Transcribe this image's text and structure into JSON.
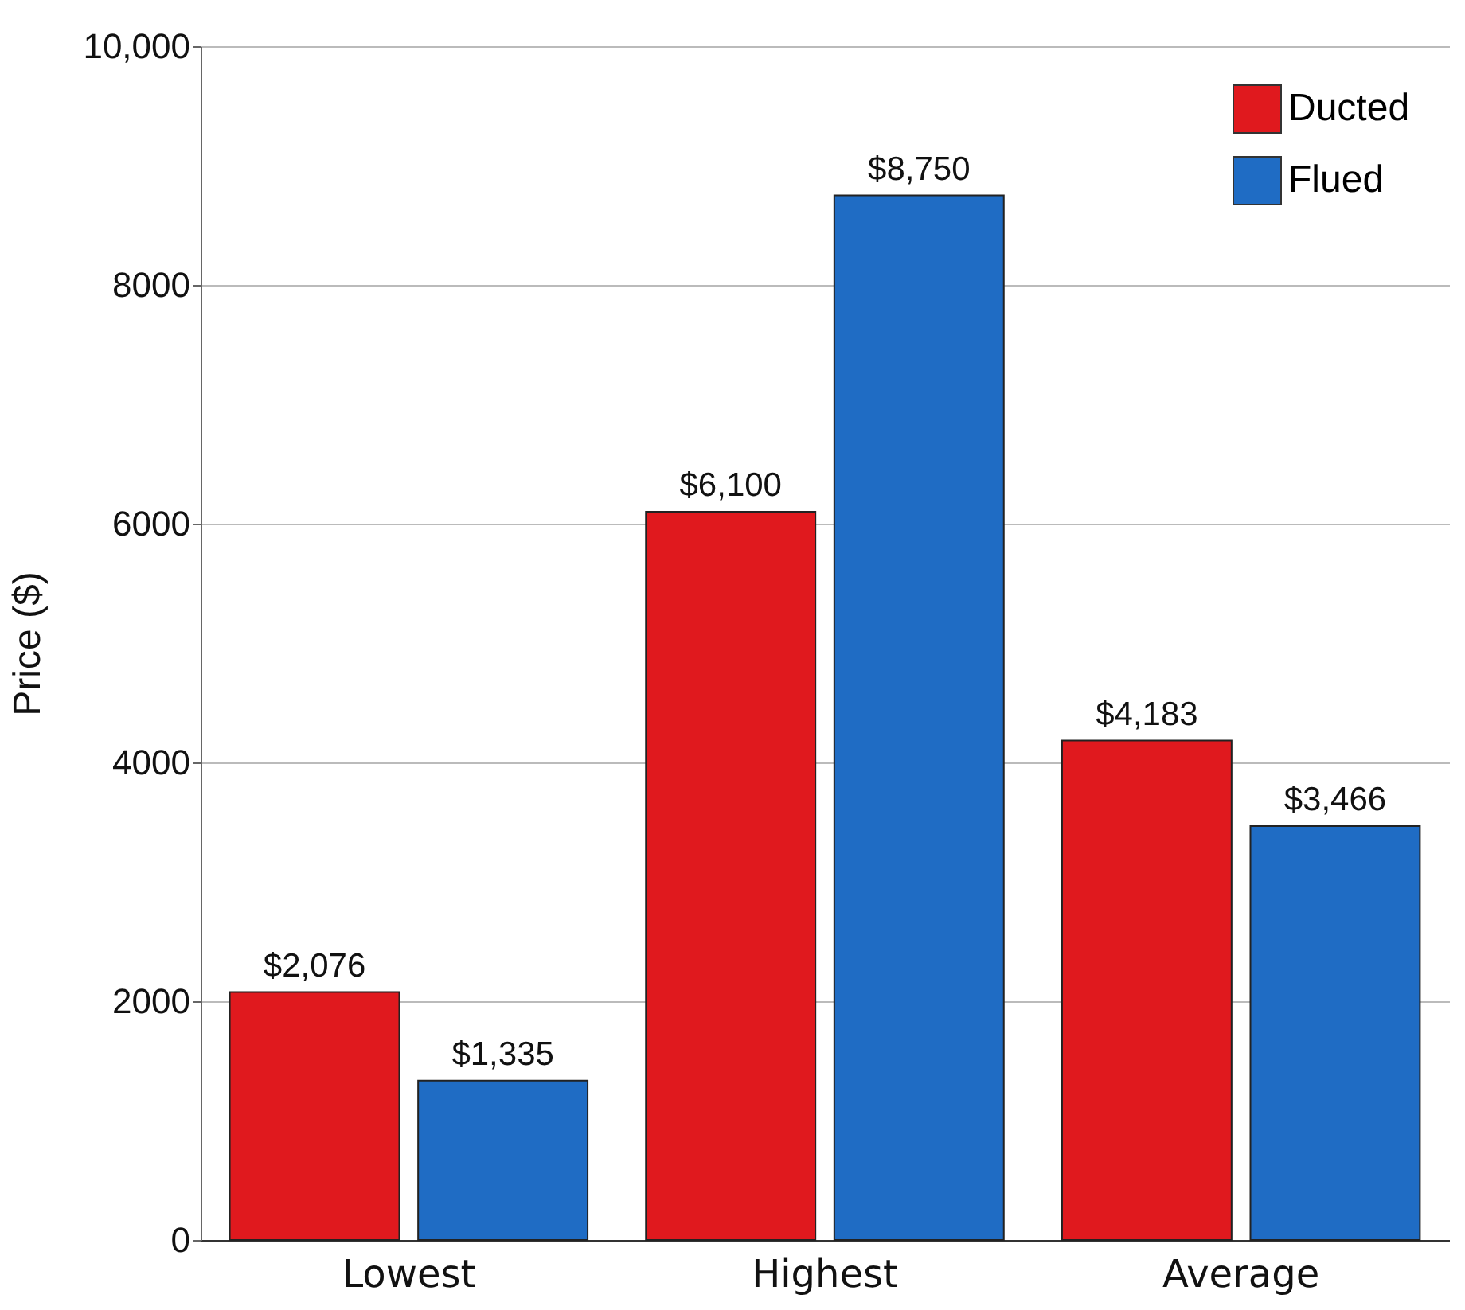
{
  "chart_data": {
    "type": "bar",
    "ylabel": "Price ($)",
    "categories": [
      "Lowest",
      "Highest",
      "Average"
    ],
    "series": [
      {
        "name": "Ducted",
        "color": "#e0191e",
        "values": [
          2076,
          6100,
          4183
        ],
        "value_labels": [
          "$2,076",
          "$6,100",
          "$4,183"
        ]
      },
      {
        "name": "Flued",
        "color": "#1f6cc4",
        "values": [
          1335,
          8750,
          3466
        ],
        "value_labels": [
          "$1,335",
          "$8,750",
          "$3,466"
        ]
      }
    ],
    "ylim": [
      0,
      10000
    ],
    "yticks": [
      0,
      2000,
      4000,
      6000,
      8000,
      {
        "value": 10000,
        "label": "10,000"
      }
    ],
    "grid": "y",
    "legend": "top right"
  }
}
